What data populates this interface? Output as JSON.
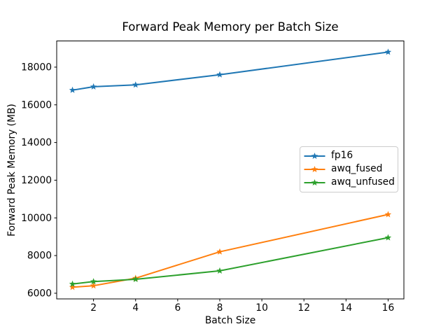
{
  "chart_data": {
    "type": "line",
    "title": "Forward Peak Memory per Batch Size",
    "xlabel": "Batch Size",
    "ylabel": "Forward Peak Memory (MB)",
    "x": [
      1,
      2,
      4,
      8,
      16
    ],
    "series": [
      {
        "name": "fp16",
        "color": "#1f77b4",
        "marker": "star",
        "values": [
          16780,
          16960,
          17060,
          17600,
          18800
        ]
      },
      {
        "name": "awq_fused",
        "color": "#ff7f0e",
        "marker": "star",
        "values": [
          6320,
          6400,
          6800,
          8200,
          10180
        ]
      },
      {
        "name": "awq_unfused",
        "color": "#2ca02c",
        "marker": "star",
        "values": [
          6490,
          6620,
          6740,
          7190,
          8950
        ]
      }
    ],
    "xticks": [
      2,
      4,
      6,
      8,
      10,
      12,
      14,
      16
    ],
    "yticks": [
      6000,
      8000,
      10000,
      12000,
      14000,
      16000,
      18000
    ],
    "xlim": [
      0.25,
      16.75
    ],
    "ylim": [
      5700,
      19390
    ],
    "grid": false,
    "legend_position": "center right"
  }
}
